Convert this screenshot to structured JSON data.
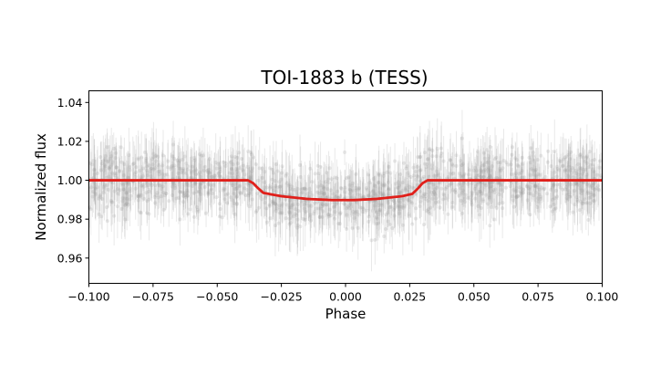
{
  "chart_data": {
    "type": "scatter",
    "title": "TOI-1883 b (TESS)",
    "xlabel": "Phase",
    "ylabel": "Normalized flux",
    "xlim": [
      -0.1,
      0.1
    ],
    "ylim": [
      0.947,
      1.046
    ],
    "x_ticks": [
      "−0.100",
      "−0.075",
      "−0.050",
      "−0.025",
      "0.000",
      "0.025",
      "0.050",
      "0.075",
      "0.100"
    ],
    "y_ticks": [
      "0.96",
      "0.98",
      "1.00",
      "1.02",
      "1.04"
    ],
    "grid": false,
    "legend": "none",
    "series": [
      {
        "kind": "observations",
        "color": "#9a9a9a",
        "count": 1400,
        "scatter_sigma": 0.013,
        "typical_error": 0.011
      },
      {
        "kind": "transit-model",
        "color": "#e0201b",
        "x": [
          -0.1,
          -0.05,
          -0.038,
          -0.036,
          -0.034,
          -0.032,
          -0.025,
          -0.015,
          -0.005,
          0.003,
          0.012,
          0.022,
          0.026,
          0.028,
          0.03,
          0.032,
          0.05,
          0.1
        ],
        "y": [
          1.0,
          1.0,
          1.0,
          0.9985,
          0.9958,
          0.9935,
          0.9918,
          0.9904,
          0.9898,
          0.9898,
          0.9904,
          0.9918,
          0.993,
          0.9955,
          0.9985,
          1.0,
          1.0,
          1.0
        ]
      }
    ]
  }
}
